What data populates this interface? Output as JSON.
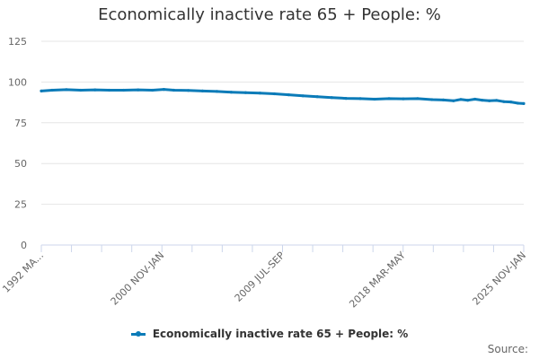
{
  "chart_data": {
    "type": "line",
    "title": "Economically inactive rate 65 + People: %",
    "xlabel": "",
    "ylabel": "",
    "ylim": [
      0,
      125
    ],
    "yticks": [
      0,
      25,
      50,
      75,
      100,
      125
    ],
    "x_tick_labels": [
      "1992 MA...",
      "2000 NOV-JAN",
      "2009 JUL-SEP",
      "2018 MAR-MAY",
      "2025 NOV-JAN"
    ],
    "x_range": [
      1992.25,
      2025.9
    ],
    "grid": true,
    "legend_position": "bottom",
    "series": [
      {
        "name": "Economically inactive rate 65 + People: %",
        "color": "#0b7bb8",
        "x": [
          1992.25,
          1993.0,
          1994.0,
          1995.0,
          1996.0,
          1997.0,
          1998.0,
          1999.0,
          2000.0,
          2000.8,
          2001.5,
          2002.5,
          2003.5,
          2004.5,
          2005.5,
          2006.5,
          2007.5,
          2008.5,
          2009.5,
          2010.5,
          2011.5,
          2012.5,
          2013.5,
          2014.5,
          2015.5,
          2016.5,
          2017.5,
          2018.5,
          2019.5,
          2020.3,
          2021.0,
          2021.5,
          2022.0,
          2022.5,
          2023.0,
          2023.5,
          2024.0,
          2024.5,
          2025.0,
          2025.5,
          2025.9
        ],
        "y": [
          94.5,
          95.0,
          95.3,
          95.0,
          95.2,
          95.0,
          95.0,
          95.2,
          95.0,
          95.5,
          95.0,
          94.8,
          94.5,
          94.2,
          93.8,
          93.5,
          93.2,
          92.8,
          92.2,
          91.5,
          91.0,
          90.5,
          90.0,
          89.8,
          89.5,
          89.8,
          89.7,
          89.8,
          89.2,
          89.0,
          88.5,
          89.3,
          88.8,
          89.5,
          88.9,
          88.5,
          88.7,
          88.0,
          87.8,
          87.0,
          86.8
        ]
      }
    ]
  },
  "legend": {
    "label": "Economically inactive rate 65 + People: %"
  },
  "source": {
    "label": "Source:"
  }
}
